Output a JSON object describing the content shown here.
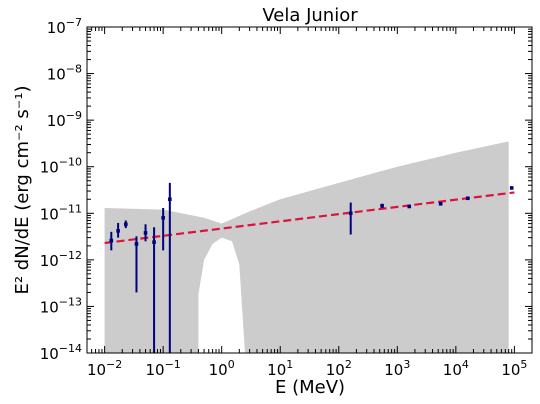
{
  "chart_data": {
    "type": "scatter",
    "title": "Vela Junior",
    "xlabel": "E (MeV)",
    "ylabel": "E² dN/dE (erg cm⁻² s⁻¹)",
    "xscale": "log",
    "yscale": "log",
    "xlim": [
      0.005,
      200000
    ],
    "ylim": [
      1e-14,
      1e-07
    ],
    "grid": false,
    "x_tick_labels": [
      {
        "base": "10",
        "exp": "−2",
        "value": 0.01
      },
      {
        "base": "10",
        "exp": "−1",
        "value": 0.1
      },
      {
        "base": "10",
        "exp": "0",
        "value": 1
      },
      {
        "base": "10",
        "exp": "1",
        "value": 10
      },
      {
        "base": "10",
        "exp": "2",
        "value": 100
      },
      {
        "base": "10",
        "exp": "3",
        "value": 1000
      },
      {
        "base": "10",
        "exp": "4",
        "value": 10000
      },
      {
        "base": "10",
        "exp": "5",
        "value": 100000
      }
    ],
    "y_tick_labels": [
      {
        "base": "10",
        "exp": "−14",
        "value": 1e-14
      },
      {
        "base": "10",
        "exp": "−13",
        "value": 1e-13
      },
      {
        "base": "10",
        "exp": "−12",
        "value": 1e-12
      },
      {
        "base": "10",
        "exp": "−11",
        "value": 1e-11
      },
      {
        "base": "10",
        "exp": "−10",
        "value": 1e-10
      },
      {
        "base": "10",
        "exp": "−9",
        "value": 1e-09
      },
      {
        "base": "10",
        "exp": "−8",
        "value": 1e-08
      },
      {
        "base": "10",
        "exp": "−7",
        "value": 1e-07
      }
    ],
    "sensitivity_band": {
      "color": "#cccccc",
      "upper": [
        [
          0.01,
          1.3e-11
        ],
        [
          0.1,
          1.2e-11
        ],
        [
          0.5,
          8e-12
        ],
        [
          1.0,
          6e-12
        ],
        [
          3,
          1.1e-11
        ],
        [
          10,
          2e-11
        ],
        [
          100,
          4.5e-11
        ],
        [
          1000,
          1e-10
        ],
        [
          10000,
          2e-10
        ],
        [
          80000,
          3.5e-10
        ]
      ],
      "lower": [
        [
          0.01,
          1e-14
        ],
        [
          80000,
          1e-14
        ]
      ],
      "gap": [
        [
          0.4,
          1e-14
        ],
        [
          0.4,
          1.8e-13
        ],
        [
          0.5,
          1e-12
        ],
        [
          0.7,
          2.2e-12
        ],
        [
          1.0,
          3e-12
        ],
        [
          1.5,
          2.5e-12
        ],
        [
          2.0,
          8e-13
        ],
        [
          2.5,
          1e-14
        ]
      ]
    },
    "fit_line": {
      "color": "#dc143c",
      "style": "dashed",
      "points": [
        [
          0.01,
          2.3e-12
        ],
        [
          100000,
          2.8e-11
        ]
      ]
    },
    "series": [
      {
        "color": "#000080",
        "points": [
          {
            "x": 0.013,
            "y": 2.6e-12,
            "ylo": 1.6e-12,
            "yhi": 4e-12
          },
          {
            "x": 0.017,
            "y": 4.2e-12,
            "ylo": 3e-12,
            "yhi": 6.2e-12
          },
          {
            "x": 0.023,
            "y": 5.8e-12,
            "ylo": 4.8e-12,
            "yhi": 7e-12
          },
          {
            "x": 0.035,
            "y": 2.2e-12,
            "ylo": 2e-13,
            "yhi": 3.2e-12
          },
          {
            "x": 0.05,
            "y": 3.8e-12,
            "ylo": 2.5e-12,
            "yhi": 5.8e-12
          },
          {
            "x": 0.07,
            "y": 2.4e-12,
            "ylo": 1e-14,
            "yhi": 5e-12
          },
          {
            "x": 0.1,
            "y": 8e-12,
            "ylo": 1.6e-12,
            "yhi": 1.3e-11
          },
          {
            "x": 0.13,
            "y": 2e-11,
            "ylo": 1e-14,
            "yhi": 4.5e-11
          },
          {
            "x": 160,
            "y": 1e-11,
            "ylo": 3.5e-12,
            "yhi": 1.7e-11
          },
          {
            "x": 550,
            "y": 1.45e-11,
            "ylo": 1.3e-11,
            "yhi": 1.6e-11
          },
          {
            "x": 1600,
            "y": 1.4e-11,
            "ylo": 1.3e-11,
            "yhi": 1.5e-11
          },
          {
            "x": 5500,
            "y": 1.6e-11,
            "ylo": 1.5e-11,
            "yhi": 1.7e-11
          },
          {
            "x": 16000,
            "y": 2.1e-11,
            "ylo": 2e-11,
            "yhi": 2.2e-11
          },
          {
            "x": 90000,
            "y": 3.5e-11,
            "ylo": 3.3e-11,
            "yhi": 3.7e-11
          }
        ]
      }
    ]
  }
}
